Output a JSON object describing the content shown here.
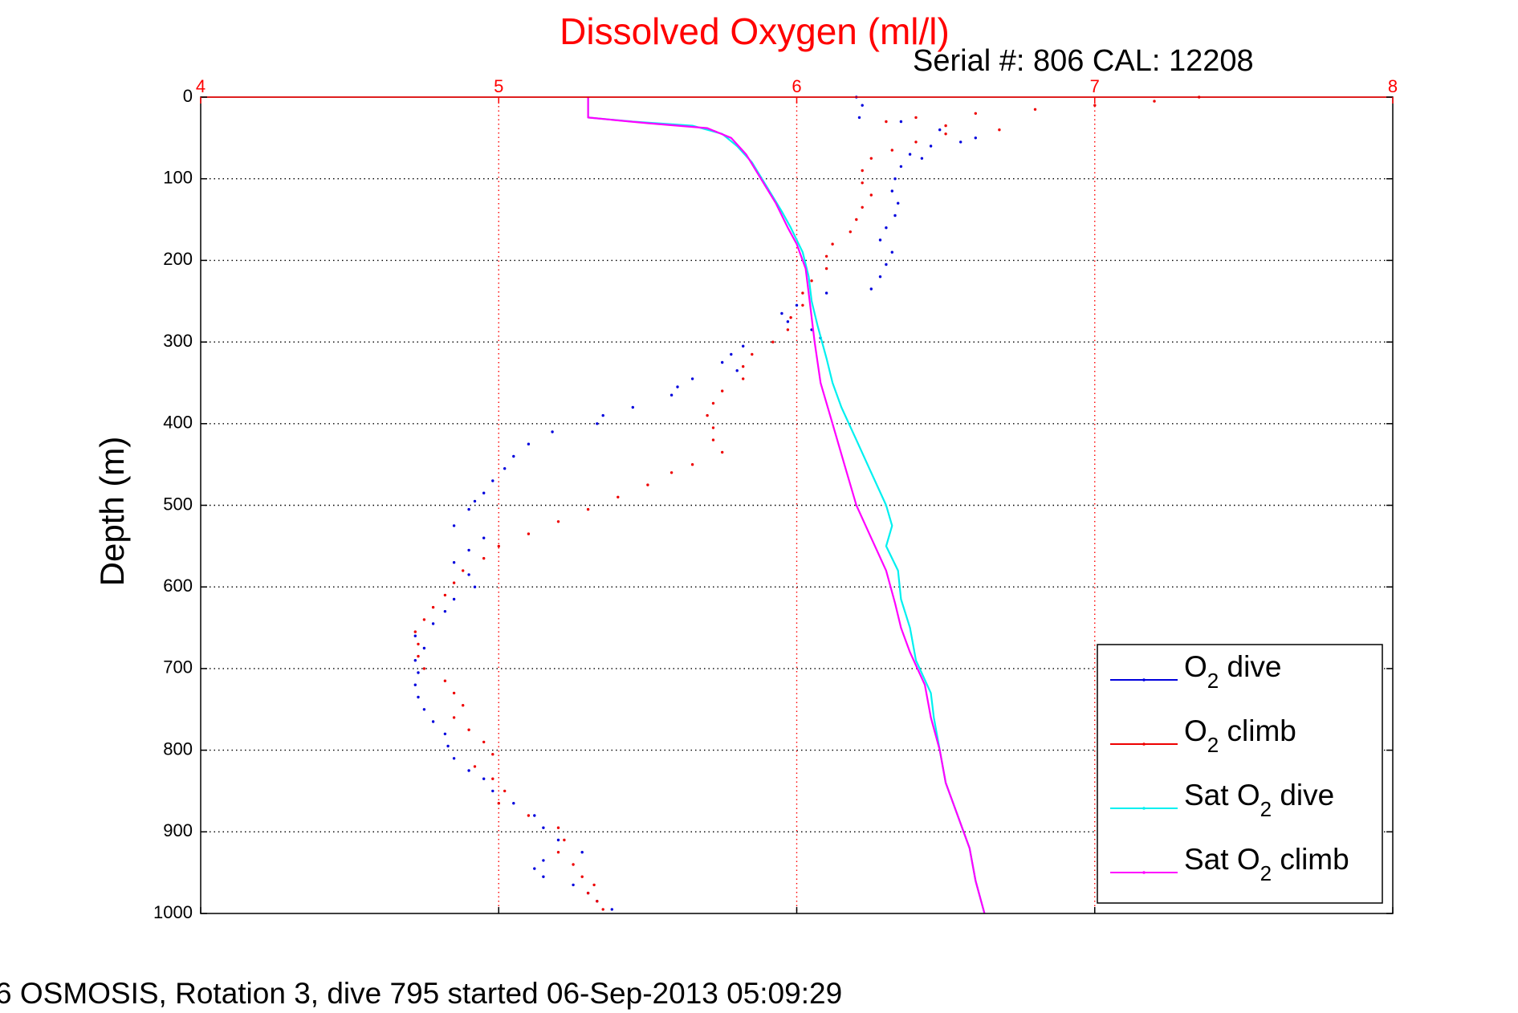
{
  "header": {
    "serial_text": "Serial #: 806  CAL: 12208"
  },
  "footer": {
    "caption": "6 OSMOSIS, Rotation 3, dive 795 started 06-Sep-2013 05:09:29"
  },
  "colors": {
    "o2_dive": "#0000dd",
    "o2_climb": "#ee0000",
    "sat_dive": "#00f0f0",
    "sat_climb": "#ff00ff",
    "title": "#ff0000",
    "x_axis": "#ff0000"
  },
  "chart_data": {
    "type": "scatter",
    "title": "Dissolved Oxygen (ml/l)",
    "xlabel": "",
    "ylabel": "Depth (m)",
    "xlim": [
      4,
      8
    ],
    "ylim": [
      0,
      1000
    ],
    "y_reversed": true,
    "x_axis_position": "top",
    "xticks": [
      "4",
      "5",
      "6",
      "7",
      "8"
    ],
    "yticks": [
      "0",
      "100",
      "200",
      "300",
      "400",
      "500",
      "600",
      "700",
      "800",
      "900",
      "1000"
    ],
    "grid": true,
    "legend_position": "bottom-right",
    "series": [
      {
        "name": "O2 dive",
        "legend_main": "O",
        "legend_sub": "2",
        "legend_tail": " dive",
        "style": "dots",
        "points": [
          [
            6.2,
            0
          ],
          [
            6.22,
            10
          ],
          [
            6.21,
            25
          ],
          [
            6.35,
            30
          ],
          [
            6.48,
            40
          ],
          [
            6.6,
            50
          ],
          [
            6.55,
            55
          ],
          [
            6.45,
            60
          ],
          [
            6.38,
            70
          ],
          [
            6.42,
            75
          ],
          [
            6.35,
            85
          ],
          [
            6.33,
            100
          ],
          [
            6.32,
            115
          ],
          [
            6.34,
            130
          ],
          [
            6.33,
            145
          ],
          [
            6.3,
            160
          ],
          [
            6.28,
            175
          ],
          [
            6.32,
            190
          ],
          [
            6.3,
            205
          ],
          [
            6.28,
            220
          ],
          [
            6.25,
            235
          ],
          [
            6.1,
            240
          ],
          [
            6.0,
            255
          ],
          [
            5.95,
            265
          ],
          [
            5.97,
            275
          ],
          [
            6.05,
            285
          ],
          [
            6.08,
            295
          ],
          [
            5.82,
            305
          ],
          [
            5.78,
            315
          ],
          [
            5.75,
            325
          ],
          [
            5.8,
            335
          ],
          [
            5.65,
            345
          ],
          [
            5.6,
            355
          ],
          [
            5.58,
            365
          ],
          [
            5.45,
            380
          ],
          [
            5.35,
            390
          ],
          [
            5.33,
            400
          ],
          [
            5.18,
            410
          ],
          [
            5.1,
            425
          ],
          [
            5.05,
            440
          ],
          [
            5.02,
            455
          ],
          [
            4.98,
            470
          ],
          [
            4.95,
            485
          ],
          [
            4.92,
            495
          ],
          [
            4.9,
            505
          ],
          [
            4.85,
            525
          ],
          [
            4.95,
            540
          ],
          [
            4.9,
            555
          ],
          [
            4.85,
            570
          ],
          [
            4.9,
            585
          ],
          [
            4.92,
            600
          ],
          [
            4.85,
            615
          ],
          [
            4.82,
            630
          ],
          [
            4.78,
            645
          ],
          [
            4.72,
            660
          ],
          [
            4.75,
            675
          ],
          [
            4.72,
            690
          ],
          [
            4.73,
            705
          ],
          [
            4.72,
            720
          ],
          [
            4.73,
            735
          ],
          [
            4.75,
            750
          ],
          [
            4.78,
            765
          ],
          [
            4.82,
            780
          ],
          [
            4.83,
            795
          ],
          [
            4.85,
            810
          ],
          [
            4.9,
            825
          ],
          [
            4.95,
            835
          ],
          [
            4.98,
            850
          ],
          [
            5.05,
            865
          ],
          [
            5.12,
            880
          ],
          [
            5.15,
            895
          ],
          [
            5.2,
            910
          ],
          [
            5.28,
            925
          ],
          [
            5.15,
            935
          ],
          [
            5.12,
            945
          ],
          [
            5.15,
            955
          ],
          [
            5.25,
            965
          ],
          [
            5.3,
            975
          ],
          [
            5.33,
            985
          ],
          [
            5.38,
            995
          ]
        ]
      },
      {
        "name": "O2 climb",
        "legend_main": "O",
        "legend_sub": "2",
        "legend_tail": " climb",
        "style": "dots",
        "points": [
          [
            7.35,
            0
          ],
          [
            7.2,
            5
          ],
          [
            7.0,
            10
          ],
          [
            6.8,
            15
          ],
          [
            6.6,
            20
          ],
          [
            6.4,
            25
          ],
          [
            6.3,
            30
          ],
          [
            6.5,
            35
          ],
          [
            6.68,
            40
          ],
          [
            6.5,
            45
          ],
          [
            6.4,
            55
          ],
          [
            6.32,
            65
          ],
          [
            6.25,
            75
          ],
          [
            6.22,
            90
          ],
          [
            6.22,
            105
          ],
          [
            6.25,
            120
          ],
          [
            6.22,
            135
          ],
          [
            6.2,
            150
          ],
          [
            6.18,
            165
          ],
          [
            6.12,
            180
          ],
          [
            6.1,
            195
          ],
          [
            6.1,
            210
          ],
          [
            6.05,
            225
          ],
          [
            6.02,
            240
          ],
          [
            6.02,
            255
          ],
          [
            5.98,
            270
          ],
          [
            5.97,
            285
          ],
          [
            5.92,
            300
          ],
          [
            5.85,
            315
          ],
          [
            5.82,
            330
          ],
          [
            5.82,
            345
          ],
          [
            5.75,
            360
          ],
          [
            5.72,
            375
          ],
          [
            5.7,
            390
          ],
          [
            5.72,
            405
          ],
          [
            5.72,
            420
          ],
          [
            5.75,
            435
          ],
          [
            5.65,
            450
          ],
          [
            5.58,
            460
          ],
          [
            5.5,
            475
          ],
          [
            5.4,
            490
          ],
          [
            5.3,
            505
          ],
          [
            5.2,
            520
          ],
          [
            5.1,
            535
          ],
          [
            5.0,
            550
          ],
          [
            4.95,
            565
          ],
          [
            4.88,
            580
          ],
          [
            4.85,
            595
          ],
          [
            4.82,
            610
          ],
          [
            4.78,
            625
          ],
          [
            4.75,
            640
          ],
          [
            4.72,
            655
          ],
          [
            4.73,
            670
          ],
          [
            4.73,
            685
          ],
          [
            4.75,
            700
          ],
          [
            4.82,
            715
          ],
          [
            4.85,
            730
          ],
          [
            4.88,
            745
          ],
          [
            4.85,
            760
          ],
          [
            4.9,
            775
          ],
          [
            4.95,
            790
          ],
          [
            4.98,
            805
          ],
          [
            4.92,
            820
          ],
          [
            4.98,
            835
          ],
          [
            5.02,
            850
          ],
          [
            5.0,
            865
          ],
          [
            5.1,
            880
          ],
          [
            5.2,
            895
          ],
          [
            5.22,
            910
          ],
          [
            5.2,
            925
          ],
          [
            5.25,
            940
          ],
          [
            5.28,
            955
          ],
          [
            5.32,
            965
          ],
          [
            5.3,
            975
          ],
          [
            5.33,
            985
          ],
          [
            5.35,
            995
          ]
        ]
      },
      {
        "name": "Sat O2 dive",
        "legend_main": "Sat O",
        "legend_sub": "2",
        "legend_tail": " dive",
        "style": "line",
        "points": [
          [
            5.3,
            0
          ],
          [
            5.3,
            25
          ],
          [
            5.45,
            30
          ],
          [
            5.65,
            35
          ],
          [
            5.75,
            45
          ],
          [
            5.8,
            60
          ],
          [
            5.85,
            80
          ],
          [
            5.9,
            110
          ],
          [
            5.95,
            140
          ],
          [
            5.98,
            160
          ],
          [
            6.02,
            190
          ],
          [
            6.04,
            220
          ],
          [
            6.05,
            250
          ],
          [
            6.07,
            280
          ],
          [
            6.1,
            320
          ],
          [
            6.12,
            350
          ],
          [
            6.15,
            380
          ],
          [
            6.2,
            420
          ],
          [
            6.25,
            460
          ],
          [
            6.3,
            500
          ],
          [
            6.32,
            525
          ],
          [
            6.3,
            550
          ],
          [
            6.34,
            580
          ],
          [
            6.35,
            615
          ],
          [
            6.38,
            650
          ],
          [
            6.4,
            690
          ],
          [
            6.45,
            730
          ],
          [
            6.46,
            760
          ],
          [
            6.48,
            800
          ],
          [
            6.5,
            840
          ],
          [
            6.54,
            880
          ],
          [
            6.58,
            920
          ],
          [
            6.6,
            960
          ],
          [
            6.63,
            1000
          ]
        ]
      },
      {
        "name": "Sat O2 climb",
        "legend_main": "Sat O",
        "legend_sub": "2",
        "legend_tail": " climb",
        "style": "line",
        "points": [
          [
            5.3,
            0
          ],
          [
            5.3,
            25
          ],
          [
            5.5,
            32
          ],
          [
            5.7,
            38
          ],
          [
            5.78,
            50
          ],
          [
            5.83,
            70
          ],
          [
            5.88,
            100
          ],
          [
            5.93,
            130
          ],
          [
            5.97,
            160
          ],
          [
            6.0,
            180
          ],
          [
            6.03,
            210
          ],
          [
            6.04,
            240
          ],
          [
            6.05,
            270
          ],
          [
            6.06,
            300
          ],
          [
            6.08,
            350
          ],
          [
            6.12,
            400
          ],
          [
            6.16,
            450
          ],
          [
            6.2,
            500
          ],
          [
            6.25,
            540
          ],
          [
            6.3,
            580
          ],
          [
            6.33,
            620
          ],
          [
            6.35,
            650
          ],
          [
            6.38,
            680
          ],
          [
            6.43,
            720
          ],
          [
            6.45,
            760
          ],
          [
            6.48,
            800
          ],
          [
            6.5,
            840
          ],
          [
            6.54,
            880
          ],
          [
            6.58,
            920
          ],
          [
            6.6,
            960
          ],
          [
            6.63,
            1000
          ]
        ]
      }
    ]
  }
}
